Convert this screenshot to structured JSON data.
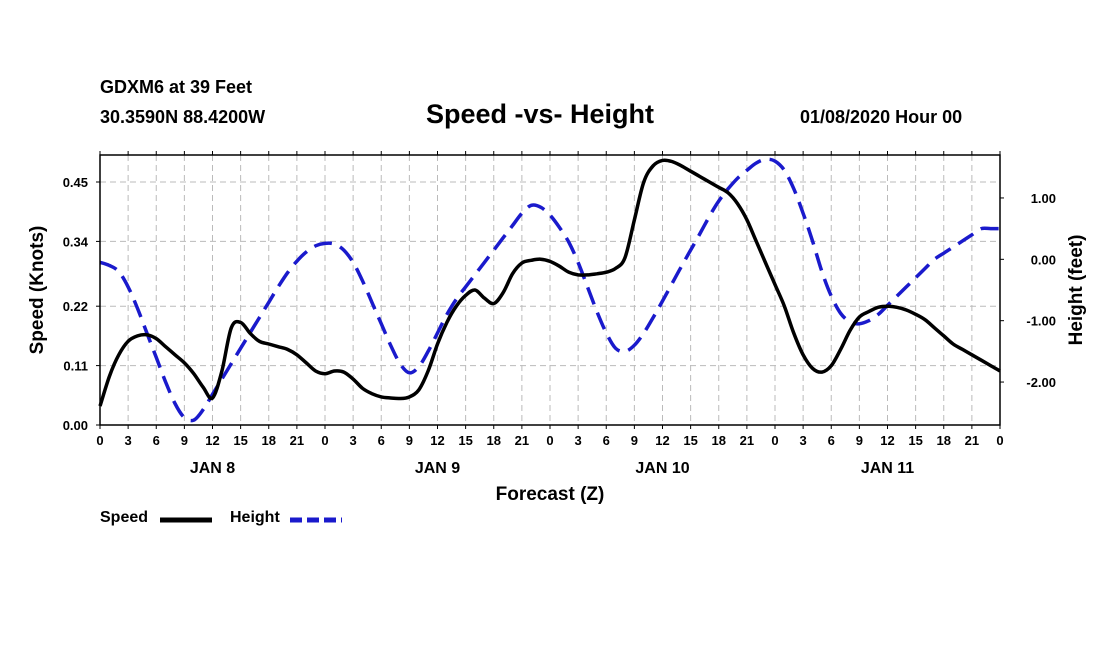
{
  "header": {
    "station": "GDXM6 at 39 Feet",
    "location": "30.3590N 88.4200W",
    "title": "Speed -vs- Height",
    "run_time": "01/08/2020 Hour 00"
  },
  "legend": {
    "speed_label": "Speed",
    "height_label": "Height"
  },
  "colors": {
    "speed": "#000000",
    "height": "#1a1acc",
    "grid": "#bbbbbb"
  },
  "chart_data": {
    "type": "line",
    "title": "Speed -vs- Height",
    "xlabel": "Forecast (Z)",
    "ylabel": "Speed (Knots)",
    "y2label": "Height (feet)",
    "xlim": [
      0,
      96
    ],
    "ylim": [
      0,
      0.5
    ],
    "y2lim": [
      -2.7,
      1.7
    ],
    "grid": true,
    "x_tick_labels": [
      "0",
      "3",
      "6",
      "9",
      "12",
      "15",
      "18",
      "21",
      "0",
      "3",
      "6",
      "9",
      "12",
      "15",
      "18",
      "21",
      "0",
      "3",
      "6",
      "9",
      "12",
      "15",
      "18",
      "21",
      "0",
      "3",
      "6",
      "9",
      "12",
      "15",
      "18",
      "21",
      "0"
    ],
    "day_labels": [
      {
        "label": "JAN 8",
        "x": 12
      },
      {
        "label": "JAN 9",
        "x": 36
      },
      {
        "label": "JAN 10",
        "x": 60
      },
      {
        "label": "JAN 11",
        "x": 84
      }
    ],
    "y_ticks": [
      {
        "value": 0.0,
        "label": "0.00"
      },
      {
        "value": 0.11,
        "label": "0.11"
      },
      {
        "value": 0.22,
        "label": "0.22"
      },
      {
        "value": 0.34,
        "label": "0.34"
      },
      {
        "value": 0.45,
        "label": "0.45"
      }
    ],
    "y2_ticks": [
      {
        "value": 1.0,
        "label": "1.00"
      },
      {
        "value": 0.0,
        "label": "0.00"
      },
      {
        "value": -1.0,
        "label": "-1.00"
      },
      {
        "value": -2.0,
        "label": "-2.00"
      }
    ],
    "series": [
      {
        "name": "Speed",
        "axis": "left",
        "style": "solid",
        "x": [
          0,
          1,
          2,
          3,
          4,
          5,
          6,
          7,
          8,
          9,
          10,
          11,
          12,
          13,
          14,
          15,
          16,
          17,
          18,
          19,
          20,
          21,
          22,
          23,
          24,
          25,
          26,
          27,
          28,
          29,
          30,
          31,
          32,
          33,
          34,
          35,
          36,
          37,
          38,
          39,
          40,
          41,
          42,
          43,
          44,
          45,
          46,
          47,
          48,
          49,
          50,
          51,
          52,
          53,
          54,
          55,
          56,
          57,
          58,
          59,
          60,
          61,
          62,
          63,
          64,
          65,
          66,
          67,
          68,
          69,
          70,
          71,
          72,
          73,
          74,
          75,
          76,
          77,
          78,
          79,
          80,
          81,
          82,
          83,
          84,
          85,
          86,
          87,
          88,
          89,
          90,
          91,
          92,
          93,
          94,
          95,
          96
        ],
        "values": [
          0.035,
          0.09,
          0.13,
          0.155,
          0.165,
          0.167,
          0.16,
          0.145,
          0.13,
          0.115,
          0.095,
          0.07,
          0.05,
          0.1,
          0.18,
          0.19,
          0.17,
          0.155,
          0.15,
          0.145,
          0.14,
          0.13,
          0.115,
          0.1,
          0.095,
          0.1,
          0.098,
          0.085,
          0.068,
          0.058,
          0.052,
          0.05,
          0.049,
          0.052,
          0.065,
          0.1,
          0.15,
          0.19,
          0.22,
          0.24,
          0.25,
          0.235,
          0.225,
          0.245,
          0.28,
          0.3,
          0.305,
          0.307,
          0.303,
          0.294,
          0.283,
          0.278,
          0.278,
          0.28,
          0.283,
          0.29,
          0.31,
          0.38,
          0.45,
          0.48,
          0.49,
          0.488,
          0.48,
          0.47,
          0.46,
          0.45,
          0.44,
          0.43,
          0.41,
          0.38,
          0.34,
          0.3,
          0.26,
          0.22,
          0.17,
          0.13,
          0.105,
          0.098,
          0.11,
          0.14,
          0.175,
          0.2,
          0.21,
          0.218,
          0.22,
          0.218,
          0.213,
          0.205,
          0.195,
          0.18,
          0.165,
          0.15,
          0.14,
          0.13,
          0.12,
          0.11,
          0.1
        ]
      },
      {
        "name": "Height",
        "axis": "right",
        "style": "dashed",
        "x": [
          0,
          1,
          2,
          3,
          4,
          5,
          6,
          7,
          8,
          9,
          10,
          11,
          12,
          13,
          14,
          15,
          16,
          17,
          18,
          19,
          20,
          21,
          22,
          23,
          24,
          25,
          26,
          27,
          28,
          29,
          30,
          31,
          32,
          33,
          34,
          35,
          36,
          37,
          38,
          39,
          40,
          41,
          42,
          43,
          44,
          45,
          46,
          47,
          48,
          49,
          50,
          51,
          52,
          53,
          54,
          55,
          56,
          57,
          58,
          59,
          60,
          61,
          62,
          63,
          64,
          65,
          66,
          67,
          68,
          69,
          70,
          71,
          72,
          73,
          74,
          75,
          76,
          77,
          78,
          79,
          80,
          81,
          82,
          83,
          84,
          85,
          86,
          87,
          88,
          89,
          90,
          91,
          92,
          93,
          94,
          95,
          96
        ],
        "values": [
          -0.05,
          -0.1,
          -0.2,
          -0.45,
          -0.8,
          -1.2,
          -1.6,
          -2.0,
          -2.35,
          -2.58,
          -2.62,
          -2.45,
          -2.2,
          -1.95,
          -1.7,
          -1.45,
          -1.2,
          -0.95,
          -0.7,
          -0.45,
          -0.22,
          -0.03,
          0.12,
          0.22,
          0.26,
          0.25,
          0.15,
          -0.05,
          -0.35,
          -0.7,
          -1.05,
          -1.4,
          -1.7,
          -1.85,
          -1.75,
          -1.5,
          -1.2,
          -0.9,
          -0.65,
          -0.45,
          -0.25,
          -0.05,
          0.15,
          0.35,
          0.55,
          0.75,
          0.88,
          0.85,
          0.72,
          0.52,
          0.28,
          -0.05,
          -0.45,
          -0.85,
          -1.2,
          -1.45,
          -1.5,
          -1.4,
          -1.2,
          -0.95,
          -0.68,
          -0.4,
          -0.12,
          0.15,
          0.42,
          0.7,
          0.95,
          1.15,
          1.32,
          1.45,
          1.57,
          1.63,
          1.6,
          1.45,
          1.15,
          0.75,
          0.3,
          -0.2,
          -0.6,
          -0.88,
          -1.02,
          -1.05,
          -1.0,
          -0.9,
          -0.75,
          -0.6,
          -0.45,
          -0.3,
          -0.15,
          0.0,
          0.1,
          0.2,
          0.3,
          0.4,
          0.5,
          0.5,
          0.5
        ]
      }
    ]
  }
}
